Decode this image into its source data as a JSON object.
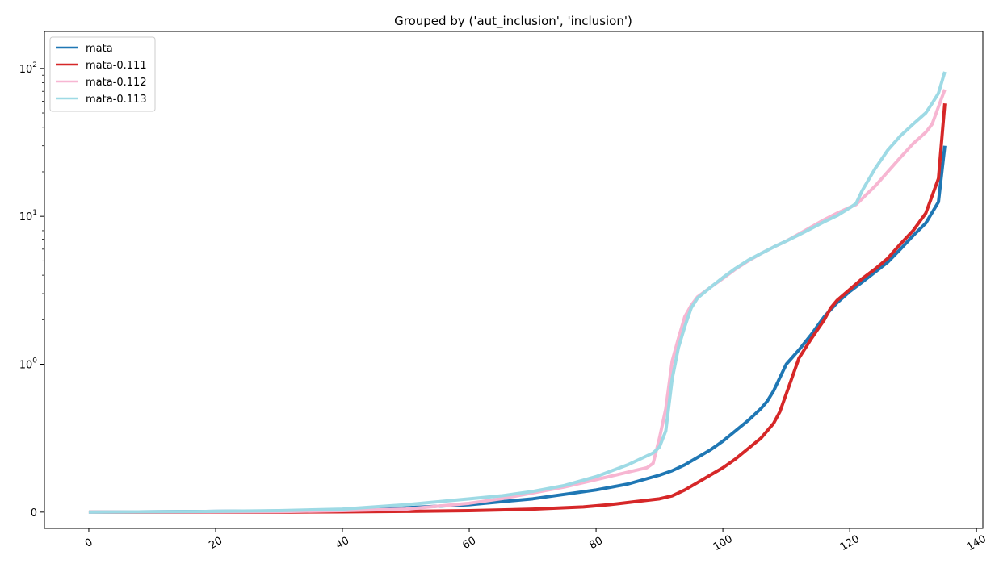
{
  "chart_data": {
    "type": "line",
    "title": "Grouped by ('aut_inclusion', 'inclusion')",
    "xlabel": "",
    "ylabel": "",
    "xlim": [
      -7,
      141
    ],
    "yscale": "symlog",
    "symlog_linthresh": 1,
    "x_ticks": [
      0,
      20,
      40,
      60,
      80,
      100,
      120,
      140
    ],
    "x_tick_labels": [
      "0",
      "20",
      "40",
      "60",
      "80",
      "100",
      "120",
      "140"
    ],
    "y_ticks": [
      0,
      1,
      10,
      100
    ],
    "y_tick_labels": [
      {
        "base": "0",
        "exp": ""
      },
      {
        "base": "10",
        "exp": "0"
      },
      {
        "base": "10",
        "exp": "1"
      },
      {
        "base": "10",
        "exp": "2"
      }
    ],
    "legend_position": "top-left",
    "series": [
      {
        "name": "mata",
        "color": "#1f77b4",
        "points": [
          [
            0,
            0
          ],
          [
            20,
            0.005
          ],
          [
            30,
            0.008
          ],
          [
            40,
            0.015
          ],
          [
            50,
            0.03
          ],
          [
            60,
            0.05
          ],
          [
            70,
            0.09
          ],
          [
            80,
            0.15
          ],
          [
            85,
            0.19
          ],
          [
            90,
            0.25
          ],
          [
            92,
            0.28
          ],
          [
            94,
            0.32
          ],
          [
            96,
            0.37
          ],
          [
            98,
            0.42
          ],
          [
            100,
            0.48
          ],
          [
            102,
            0.55
          ],
          [
            104,
            0.62
          ],
          [
            106,
            0.7
          ],
          [
            107,
            0.75
          ],
          [
            108,
            0.82
          ],
          [
            110,
            1.0
          ],
          [
            112,
            1.25
          ],
          [
            114,
            1.6
          ],
          [
            116,
            2.1
          ],
          [
            118,
            2.6
          ],
          [
            120,
            3.1
          ],
          [
            122,
            3.6
          ],
          [
            124,
            4.2
          ],
          [
            126,
            4.9
          ],
          [
            128,
            6.0
          ],
          [
            130,
            7.4
          ],
          [
            132,
            9.0
          ],
          [
            134,
            12.5
          ],
          [
            135,
            30
          ]
        ]
      },
      {
        "name": "mata-0.111",
        "color": "#d62728",
        "points": [
          [
            0,
            0
          ],
          [
            30,
            0
          ],
          [
            40,
            0.002
          ],
          [
            50,
            0.005
          ],
          [
            60,
            0.01
          ],
          [
            70,
            0.02
          ],
          [
            78,
            0.035
          ],
          [
            82,
            0.05
          ],
          [
            86,
            0.07
          ],
          [
            90,
            0.09
          ],
          [
            92,
            0.11
          ],
          [
            94,
            0.15
          ],
          [
            96,
            0.2
          ],
          [
            98,
            0.25
          ],
          [
            100,
            0.3
          ],
          [
            102,
            0.36
          ],
          [
            104,
            0.43
          ],
          [
            106,
            0.5
          ],
          [
            108,
            0.6
          ],
          [
            109,
            0.68
          ],
          [
            110,
            0.8
          ],
          [
            112,
            1.1
          ],
          [
            114,
            1.5
          ],
          [
            116,
            2.0
          ],
          [
            117,
            2.4
          ],
          [
            118,
            2.7
          ],
          [
            120,
            3.2
          ],
          [
            122,
            3.8
          ],
          [
            124,
            4.4
          ],
          [
            126,
            5.2
          ],
          [
            128,
            6.5
          ],
          [
            130,
            8.0
          ],
          [
            132,
            10.5
          ],
          [
            134,
            18
          ],
          [
            135,
            58
          ]
        ]
      },
      {
        "name": "mata-0.112",
        "color": "#f7b6d2",
        "points": [
          [
            0,
            0
          ],
          [
            30,
            0.003
          ],
          [
            40,
            0.01
          ],
          [
            50,
            0.02
          ],
          [
            55,
            0.04
          ],
          [
            60,
            0.06
          ],
          [
            65,
            0.09
          ],
          [
            70,
            0.13
          ],
          [
            75,
            0.17
          ],
          [
            80,
            0.22
          ],
          [
            85,
            0.27
          ],
          [
            88,
            0.3
          ],
          [
            89,
            0.33
          ],
          [
            90,
            0.5
          ],
          [
            91,
            0.7
          ],
          [
            92,
            1.05
          ],
          [
            93,
            1.5
          ],
          [
            94,
            2.1
          ],
          [
            95,
            2.5
          ],
          [
            96,
            2.85
          ],
          [
            98,
            3.3
          ],
          [
            100,
            3.8
          ],
          [
            102,
            4.4
          ],
          [
            104,
            5.0
          ],
          [
            106,
            5.6
          ],
          [
            108,
            6.2
          ],
          [
            110,
            6.8
          ],
          [
            112,
            7.6
          ],
          [
            114,
            8.5
          ],
          [
            116,
            9.5
          ],
          [
            118,
            10.5
          ],
          [
            120,
            11.5
          ],
          [
            121,
            12.0
          ],
          [
            124,
            16
          ],
          [
            126,
            20
          ],
          [
            128,
            25
          ],
          [
            130,
            31
          ],
          [
            132,
            37
          ],
          [
            133,
            42
          ],
          [
            134,
            55
          ],
          [
            135,
            72
          ]
        ]
      },
      {
        "name": "mata-0.113",
        "color": "#9edae5",
        "points": [
          [
            0,
            0
          ],
          [
            20,
            0.005
          ],
          [
            30,
            0.01
          ],
          [
            40,
            0.02
          ],
          [
            50,
            0.05
          ],
          [
            60,
            0.09
          ],
          [
            65,
            0.11
          ],
          [
            70,
            0.14
          ],
          [
            75,
            0.18
          ],
          [
            80,
            0.24
          ],
          [
            85,
            0.32
          ],
          [
            89,
            0.4
          ],
          [
            90,
            0.44
          ],
          [
            91,
            0.55
          ],
          [
            92,
            0.9
          ],
          [
            93,
            1.3
          ],
          [
            94,
            1.8
          ],
          [
            95,
            2.4
          ],
          [
            96,
            2.8
          ],
          [
            98,
            3.3
          ],
          [
            100,
            3.85
          ],
          [
            102,
            4.45
          ],
          [
            104,
            5.05
          ],
          [
            106,
            5.6
          ],
          [
            108,
            6.2
          ],
          [
            110,
            6.8
          ],
          [
            112,
            7.5
          ],
          [
            114,
            8.3
          ],
          [
            116,
            9.2
          ],
          [
            118,
            10.1
          ],
          [
            120,
            11.4
          ],
          [
            121,
            12.2
          ],
          [
            122,
            15
          ],
          [
            124,
            21
          ],
          [
            126,
            28
          ],
          [
            128,
            35
          ],
          [
            130,
            42
          ],
          [
            132,
            50
          ],
          [
            133,
            58
          ],
          [
            134,
            68
          ],
          [
            135,
            95
          ]
        ]
      }
    ]
  }
}
